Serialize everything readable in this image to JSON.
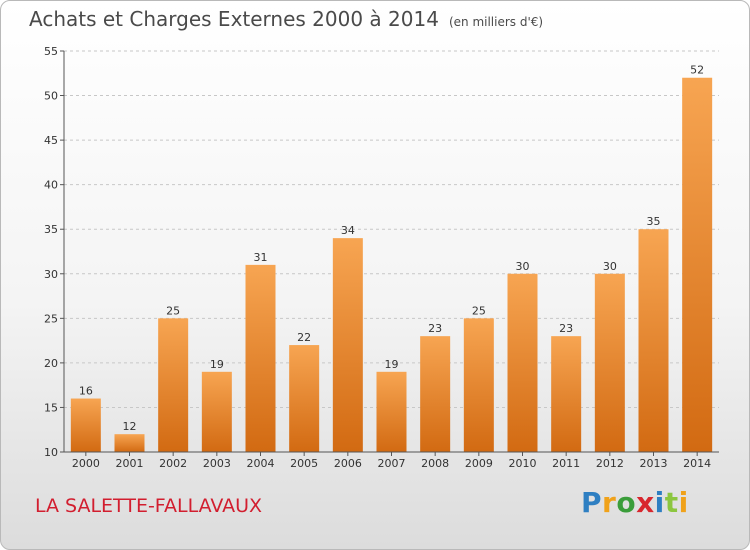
{
  "title": "Achats et Charges Externes 2000 à 2014",
  "unit_note": "(en milliers d'€)",
  "place_name": "LA SALETTE-FALLAVAUX",
  "logo": {
    "letters": [
      "P",
      "r",
      "o",
      "x",
      "i",
      "t",
      "i"
    ],
    "colors": [
      "#2e7fc2",
      "#f0a21a",
      "#3a9d3a",
      "#d8272e",
      "#2e7fc2",
      "#8cc63f",
      "#f0a21a"
    ]
  },
  "colors": {
    "bar_top": "#f7a552",
    "bar_bottom": "#d26a12",
    "grid": "#c7c7c7",
    "axis": "#555555"
  },
  "chart_data": {
    "type": "bar",
    "title": "Achats et Charges Externes 2000 à 2014",
    "subtitle": "(en milliers d'€)",
    "categories": [
      "2000",
      "2001",
      "2002",
      "2003",
      "2004",
      "2005",
      "2006",
      "2007",
      "2008",
      "2009",
      "2010",
      "2011",
      "2012",
      "2013",
      "2014"
    ],
    "values": [
      16,
      12,
      25,
      19,
      31,
      22,
      34,
      19,
      23,
      25,
      30,
      23,
      30,
      35,
      52
    ],
    "ylim": [
      10,
      55
    ],
    "yticks": [
      10,
      15,
      20,
      25,
      30,
      35,
      40,
      45,
      50,
      55
    ],
    "grid": true,
    "grid_style": "dashed-horizontal"
  }
}
